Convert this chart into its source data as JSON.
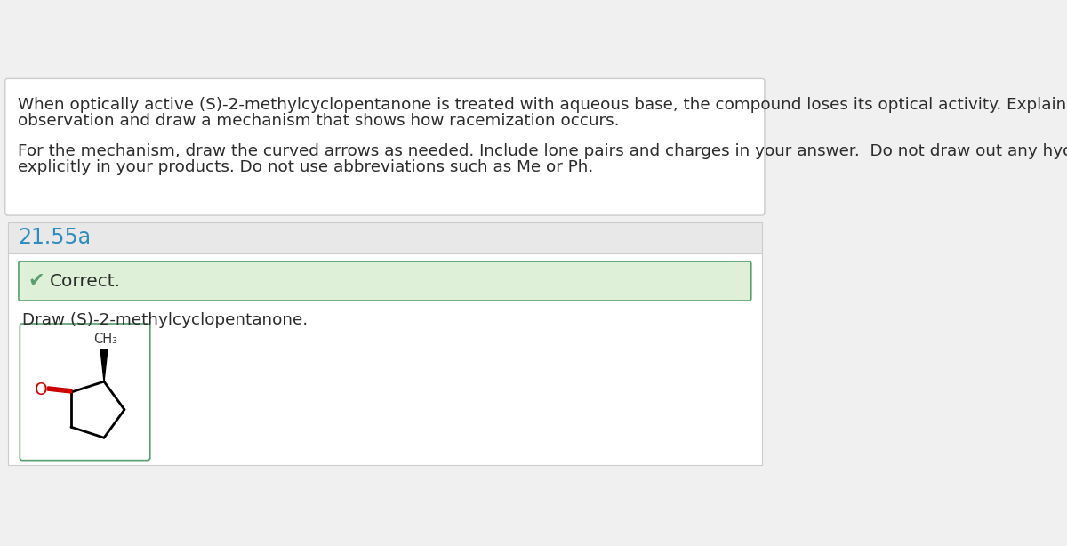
{
  "bg_color": "#f0f0f0",
  "white": "#ffffff",
  "border_color": "#cccccc",
  "green_bg": "#dff0d8",
  "green_border": "#5a9e6f",
  "teal_text": "#2e8bc0",
  "dark_text": "#2c2c2c",
  "red_color": "#cc0000",
  "header_bg": "#e8e8e8",
  "question_text_line1": "When optically active (S)-2-methylcyclopentanone is treated with aqueous base, the compound loses its optical activity. Explain this",
  "question_text_line2": "observation and draw a mechanism that shows how racemization occurs.",
  "question_text_line3": "For the mechanism, draw the curved arrows as needed. Include lone pairs and charges in your answer.  Do not draw out any hydrogen",
  "question_text_line4": "explicitly in your products. Do not use abbreviations such as Me or Ph.",
  "section_label": "21.55a",
  "correct_text": "Correct.",
  "draw_label": "Draw (S)-2-methylcyclopentanone.",
  "ch3_label": "CH₃"
}
